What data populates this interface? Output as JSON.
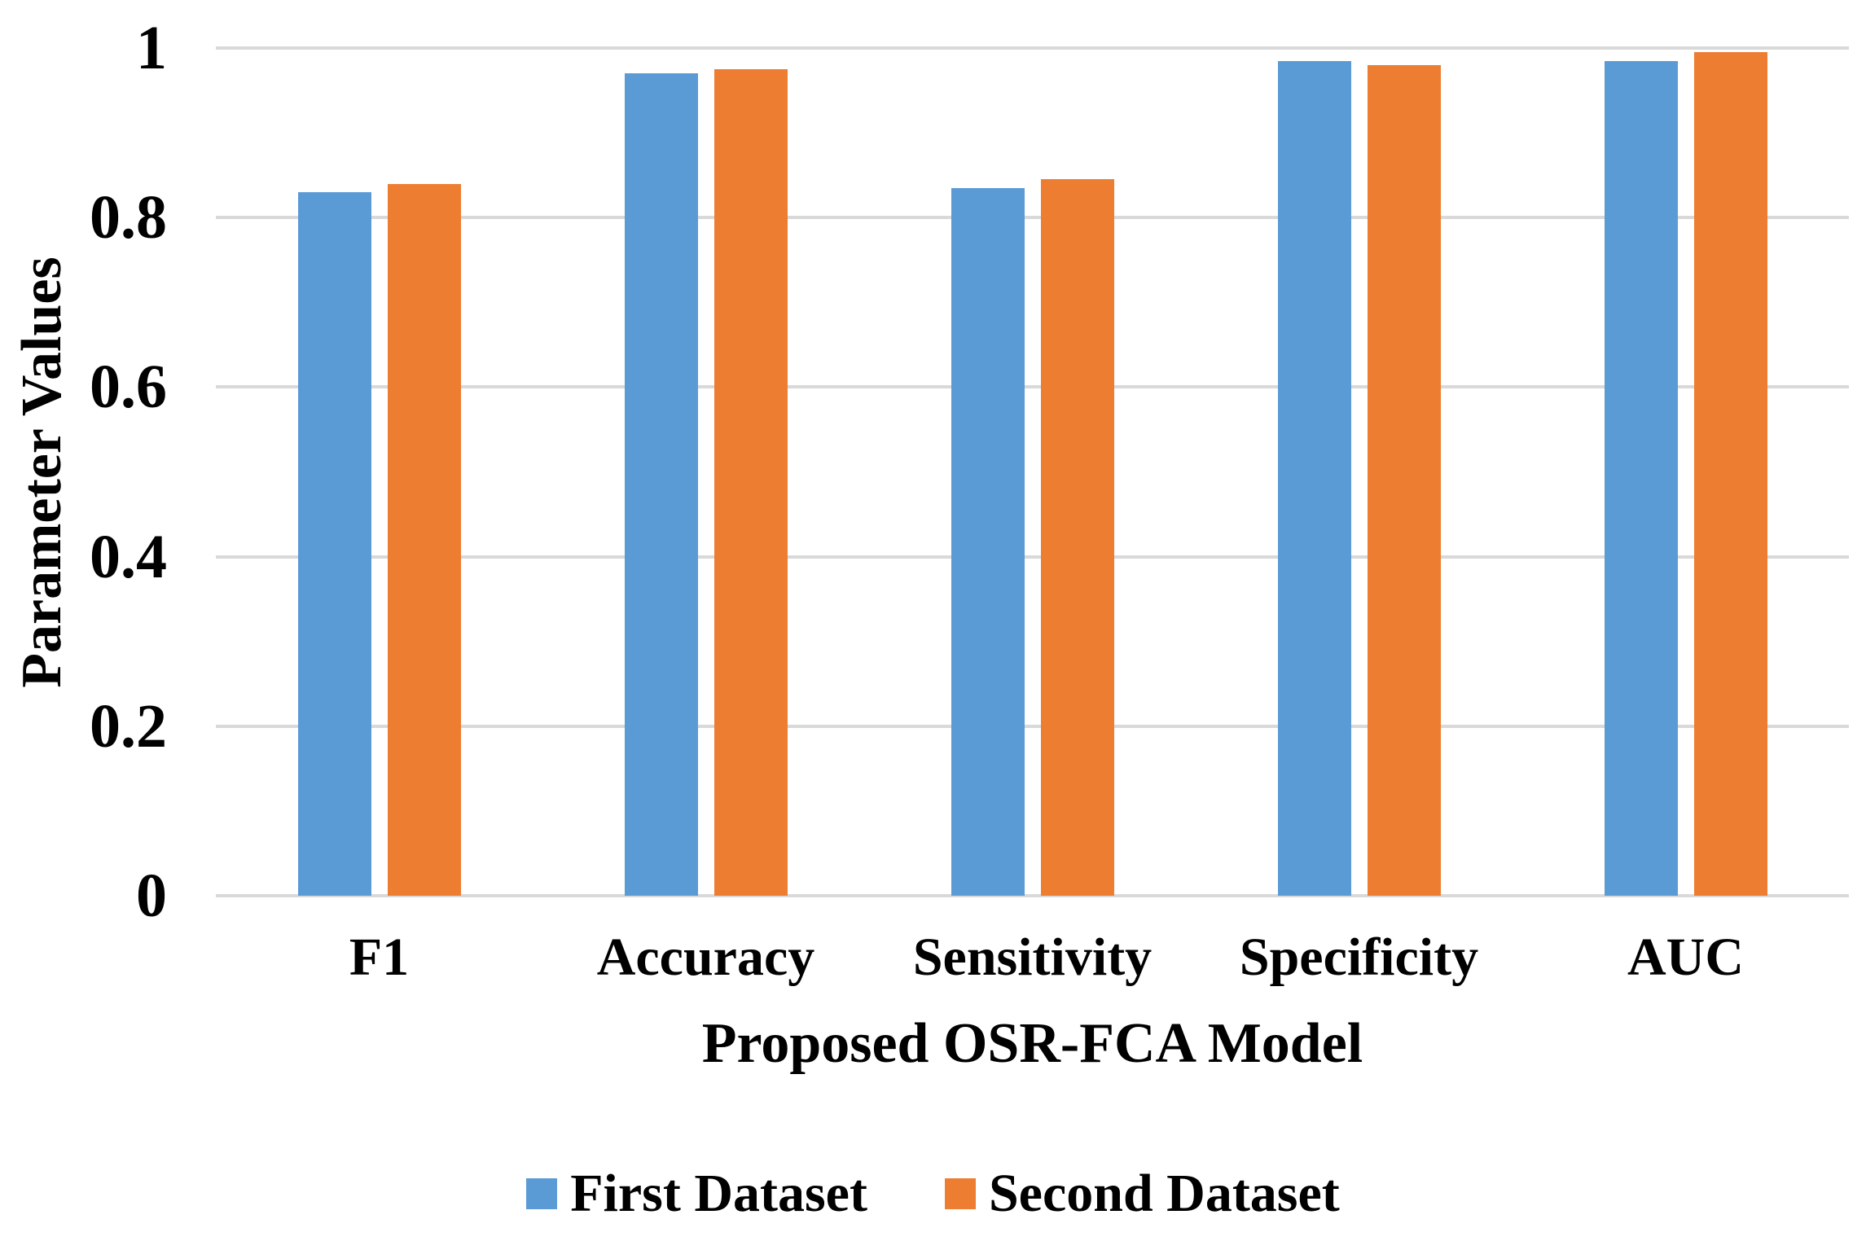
{
  "chart_data": {
    "type": "bar",
    "title": "",
    "xlabel": "Proposed OSR-FCA Model",
    "ylabel": "Parameter Values",
    "categories": [
      "F1",
      "Accuracy",
      "Sensitivity",
      "Specificity",
      "AUC"
    ],
    "series": [
      {
        "name": "First Dataset",
        "color": "#5B9BD5",
        "values": [
          0.83,
          0.97,
          0.835,
          0.985,
          0.985
        ]
      },
      {
        "name": "Second Dataset",
        "color": "#ED7D31",
        "values": [
          0.84,
          0.975,
          0.845,
          0.98,
          0.995
        ]
      }
    ],
    "ylim": [
      0,
      1
    ],
    "yticks": [
      0,
      0.2,
      0.4,
      0.6,
      0.8,
      1
    ],
    "ytick_labels": [
      "0",
      "0.2",
      "0.4",
      "0.6",
      "0.8",
      "1"
    ],
    "grid": true,
    "gridline_color": "#D9D9D9",
    "legend_position": "bottom"
  }
}
